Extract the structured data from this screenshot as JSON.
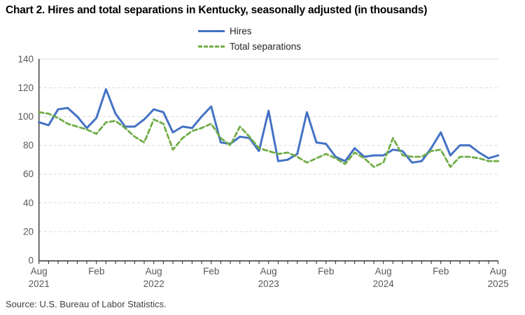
{
  "title": "Chart 2. Hires and total separations in Kentucky, seasonally adjusted (in thousands)",
  "source": "Source: U.S. Bureau of Labor Statistics.",
  "colors": {
    "hires": "#4472c4",
    "separations": "#70ad47",
    "gridline": "#d9d9d9",
    "axis": "#262626",
    "tick_label": "#595959"
  },
  "legend": {
    "position": "top-center",
    "items": [
      {
        "label": "Hires",
        "color": "#4472c4",
        "style": "solid"
      },
      {
        "label": "Total separations",
        "color": "#70ad47",
        "style": "dashed"
      }
    ]
  },
  "chart_data": {
    "type": "line",
    "title": "Chart 2. Hires and total separations in Kentucky, seasonally adjusted (in thousands)",
    "xlabel": "",
    "ylabel": "",
    "ylim": [
      0,
      140
    ],
    "y_ticks": [
      0,
      20,
      40,
      60,
      80,
      100,
      120,
      140
    ],
    "grid": "horizontal-dashed",
    "x_unit": "month",
    "x_start": "Aug 2021",
    "x_end": "Aug 2025",
    "x_tick_labels": [
      {
        "index": 0,
        "line1": "Aug",
        "line2": "2021"
      },
      {
        "index": 6,
        "line1": "Feb"
      },
      {
        "index": 12,
        "line1": "Aug",
        "line2": "2022"
      },
      {
        "index": 18,
        "line1": "Feb"
      },
      {
        "index": 24,
        "line1": "Aug",
        "line2": "2023"
      },
      {
        "index": 30,
        "line1": "Feb"
      },
      {
        "index": 36,
        "line1": "Aug",
        "line2": "2024"
      },
      {
        "index": 42,
        "line1": "Feb"
      },
      {
        "index": 48,
        "line1": "Aug",
        "line2": "2025"
      }
    ],
    "series": [
      {
        "name": "Hires",
        "color": "#4472c4",
        "style": "solid",
        "values": [
          96,
          94,
          105,
          106,
          100,
          92,
          99,
          119,
          102,
          93,
          93,
          98,
          105,
          103,
          89,
          93,
          92,
          100,
          107,
          82,
          81,
          86,
          85,
          76,
          104,
          69,
          70,
          74,
          103,
          82,
          81,
          72,
          69,
          78,
          72,
          73,
          73,
          77,
          76,
          68,
          69,
          78,
          89,
          73,
          80,
          80,
          75,
          71,
          73
        ]
      },
      {
        "name": "Total separations",
        "color": "#70ad47",
        "style": "dashed",
        "values": [
          103,
          102,
          99,
          95,
          93,
          91,
          88,
          96,
          97,
          92,
          86,
          82,
          98,
          95,
          77,
          85,
          90,
          92,
          95,
          85,
          80,
          93,
          86,
          78,
          76,
          74,
          75,
          72,
          68,
          71,
          74,
          71,
          67,
          75,
          71,
          65,
          68,
          85,
          73,
          72,
          72,
          76,
          77,
          65,
          72,
          72,
          71,
          69,
          69
        ]
      }
    ]
  }
}
